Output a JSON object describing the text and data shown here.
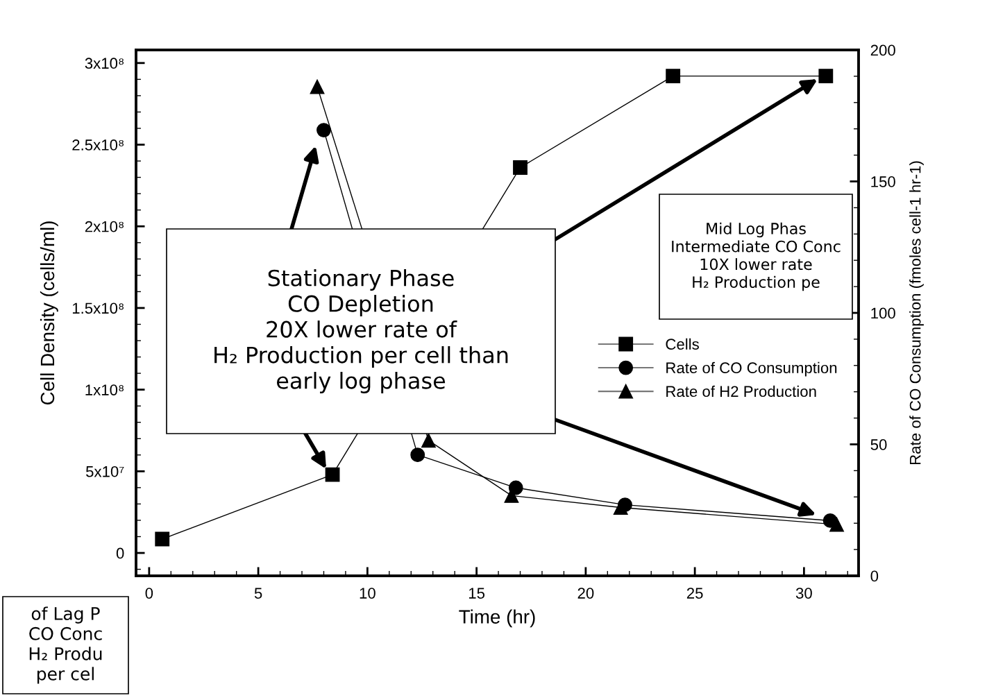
{
  "chart_data": {
    "type": "line",
    "xlabel": "Time (hr)",
    "ylabel": "Cell Density (cells/ml)",
    "y2label": "Rate of CO Consumption (fmoles cell-1 hr-1)",
    "series": [
      {
        "name": "Cells",
        "color": "#000000",
        "marker": "square",
        "x": [
          0.6,
          8.4,
          17.0,
          24.0,
          31.0
        ],
        "values": [
          8500000,
          48000000,
          236000000,
          292000000,
          292000000
        ]
      },
      {
        "name": "Rate of CO Consumption",
        "color": "#000000",
        "marker": "circle",
        "axis": "y2",
        "x": [
          8.0,
          12.3,
          16.8,
          21.8,
          31.2
        ],
        "values": [
          169.5,
          46,
          33.5,
          27,
          21
        ]
      },
      {
        "name": "Rate of H2 Production",
        "color": "#000000",
        "marker": "triangle",
        "axis": "y2",
        "x": [
          7.7,
          12.8,
          16.6,
          21.6,
          31.5
        ],
        "values": [
          186,
          51.5,
          30.5,
          26,
          19.5
        ]
      }
    ],
    "xlim": [
      -0.6,
      32.5
    ],
    "xticks": [
      0,
      5,
      10,
      15,
      20,
      25,
      30
    ],
    "ylim": [
      -14000000,
      308000000
    ],
    "yticks": [
      {
        "value": 0,
        "label": "0"
      },
      {
        "value": 50000000,
        "label": "5x10⁷"
      },
      {
        "value": 100000000,
        "label": "1x10⁸"
      },
      {
        "value": 150000000,
        "label": "1.5x10⁸"
      },
      {
        "value": 200000000,
        "label": "2x10⁸"
      },
      {
        "value": 250000000,
        "label": "2.5x10⁸"
      },
      {
        "value": 300000000,
        "label": "3x10⁸"
      }
    ],
    "y2lim": [
      0,
      200
    ],
    "y2ticks": [
      0,
      50,
      100,
      150,
      200
    ],
    "legend": "right",
    "line_style": "solid",
    "annotations": [
      "of Lag P\nCO Conc\nH₂ Produ\nper cel",
      "Stationary Phase\nCO Depletion\n20X lower rate of\nH₂ Production per cell than\nearly log phase",
      "Mid Log Phas\nIntermediate CO Conc\n10X lower rate\nH₂ Production pe"
    ]
  }
}
